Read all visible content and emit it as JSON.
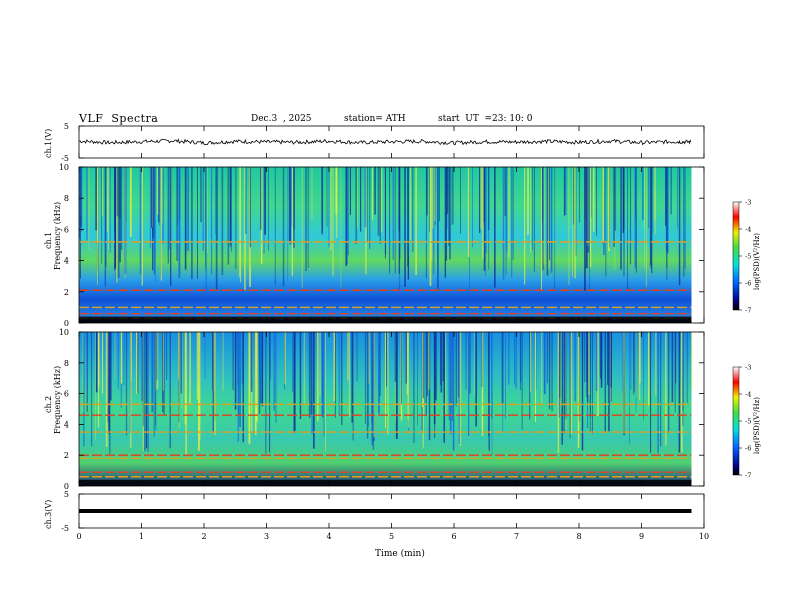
{
  "header": {
    "title": "VLF  Spectra",
    "date": "Dec.3  , 2025",
    "station": "station= ATH",
    "start_label": "start  UT  =",
    "start_value": "23: 10: 0"
  },
  "chart_data": [
    {
      "type": "line",
      "panel": "ch1-waveform",
      "ylabel": "ch.1(V)",
      "ylim": [
        -5,
        5
      ],
      "yticks": [
        "5",
        "-5"
      ],
      "description_level": "noisy waveform centered near 0 V",
      "x": [
        0,
        0.5,
        1,
        1.5,
        2,
        2.5,
        3,
        3.5,
        4,
        4.5,
        5,
        5.5,
        6,
        6.5,
        7,
        7.5,
        8,
        8.5,
        9,
        9.5,
        9.8
      ],
      "values": [
        0.3,
        -0.2,
        0.1,
        0.4,
        -0.3,
        0.2,
        0.0,
        -0.1,
        0.3,
        -0.2,
        0.1,
        0.2,
        -0.3,
        0.1,
        0.0,
        0.2,
        -0.1,
        0.3,
        -0.2,
        0.1,
        0.0
      ]
    },
    {
      "type": "heatmap",
      "panel": "ch1-spectrogram",
      "ylabel_line1": "ch.1",
      "ylabel_line2": "Frequency (kHz)",
      "ylim": [
        0,
        10
      ],
      "yticks": [
        "0",
        "2",
        "4",
        "6",
        "8",
        "10"
      ],
      "colorbar_label": "log(PSD)(V²/Hz)",
      "colorbar_range": [
        -7,
        -3
      ],
      "colorbar_ticks": [
        "-3",
        "-4",
        "-5",
        "-6",
        "-7"
      ],
      "bands_khz": [
        0.3,
        0.6,
        1.0,
        2.1,
        5.2
      ]
    },
    {
      "type": "heatmap",
      "panel": "ch2-spectrogram",
      "ylabel_line1": "ch.2",
      "ylabel_line2": "Frequency (kHz)",
      "ylim": [
        0,
        10
      ],
      "yticks": [
        "0",
        "2",
        "4",
        "6",
        "8",
        "10"
      ],
      "colorbar_label": "log(PSD)(V²/Hz)",
      "colorbar_range": [
        -7,
        -3
      ],
      "colorbar_ticks": [
        "-3",
        "-4",
        "-5",
        "-6",
        "-7"
      ],
      "bands_khz": [
        0.6,
        0.9,
        1.8,
        2.0,
        3.5,
        4.6,
        5.3
      ]
    },
    {
      "type": "line",
      "panel": "ch3-waveform",
      "ylabel": "ch.3(V)",
      "ylim": [
        -5,
        5
      ],
      "yticks": [
        "5",
        "-5"
      ],
      "x": [
        0,
        9.8
      ],
      "values": [
        0,
        0
      ]
    }
  ],
  "xaxis": {
    "label": "Time  (min)",
    "ticks": [
      "0",
      "1",
      "2",
      "3",
      "4",
      "5",
      "6",
      "7",
      "8",
      "9",
      "10"
    ],
    "xlim": [
      0,
      10
    ]
  }
}
